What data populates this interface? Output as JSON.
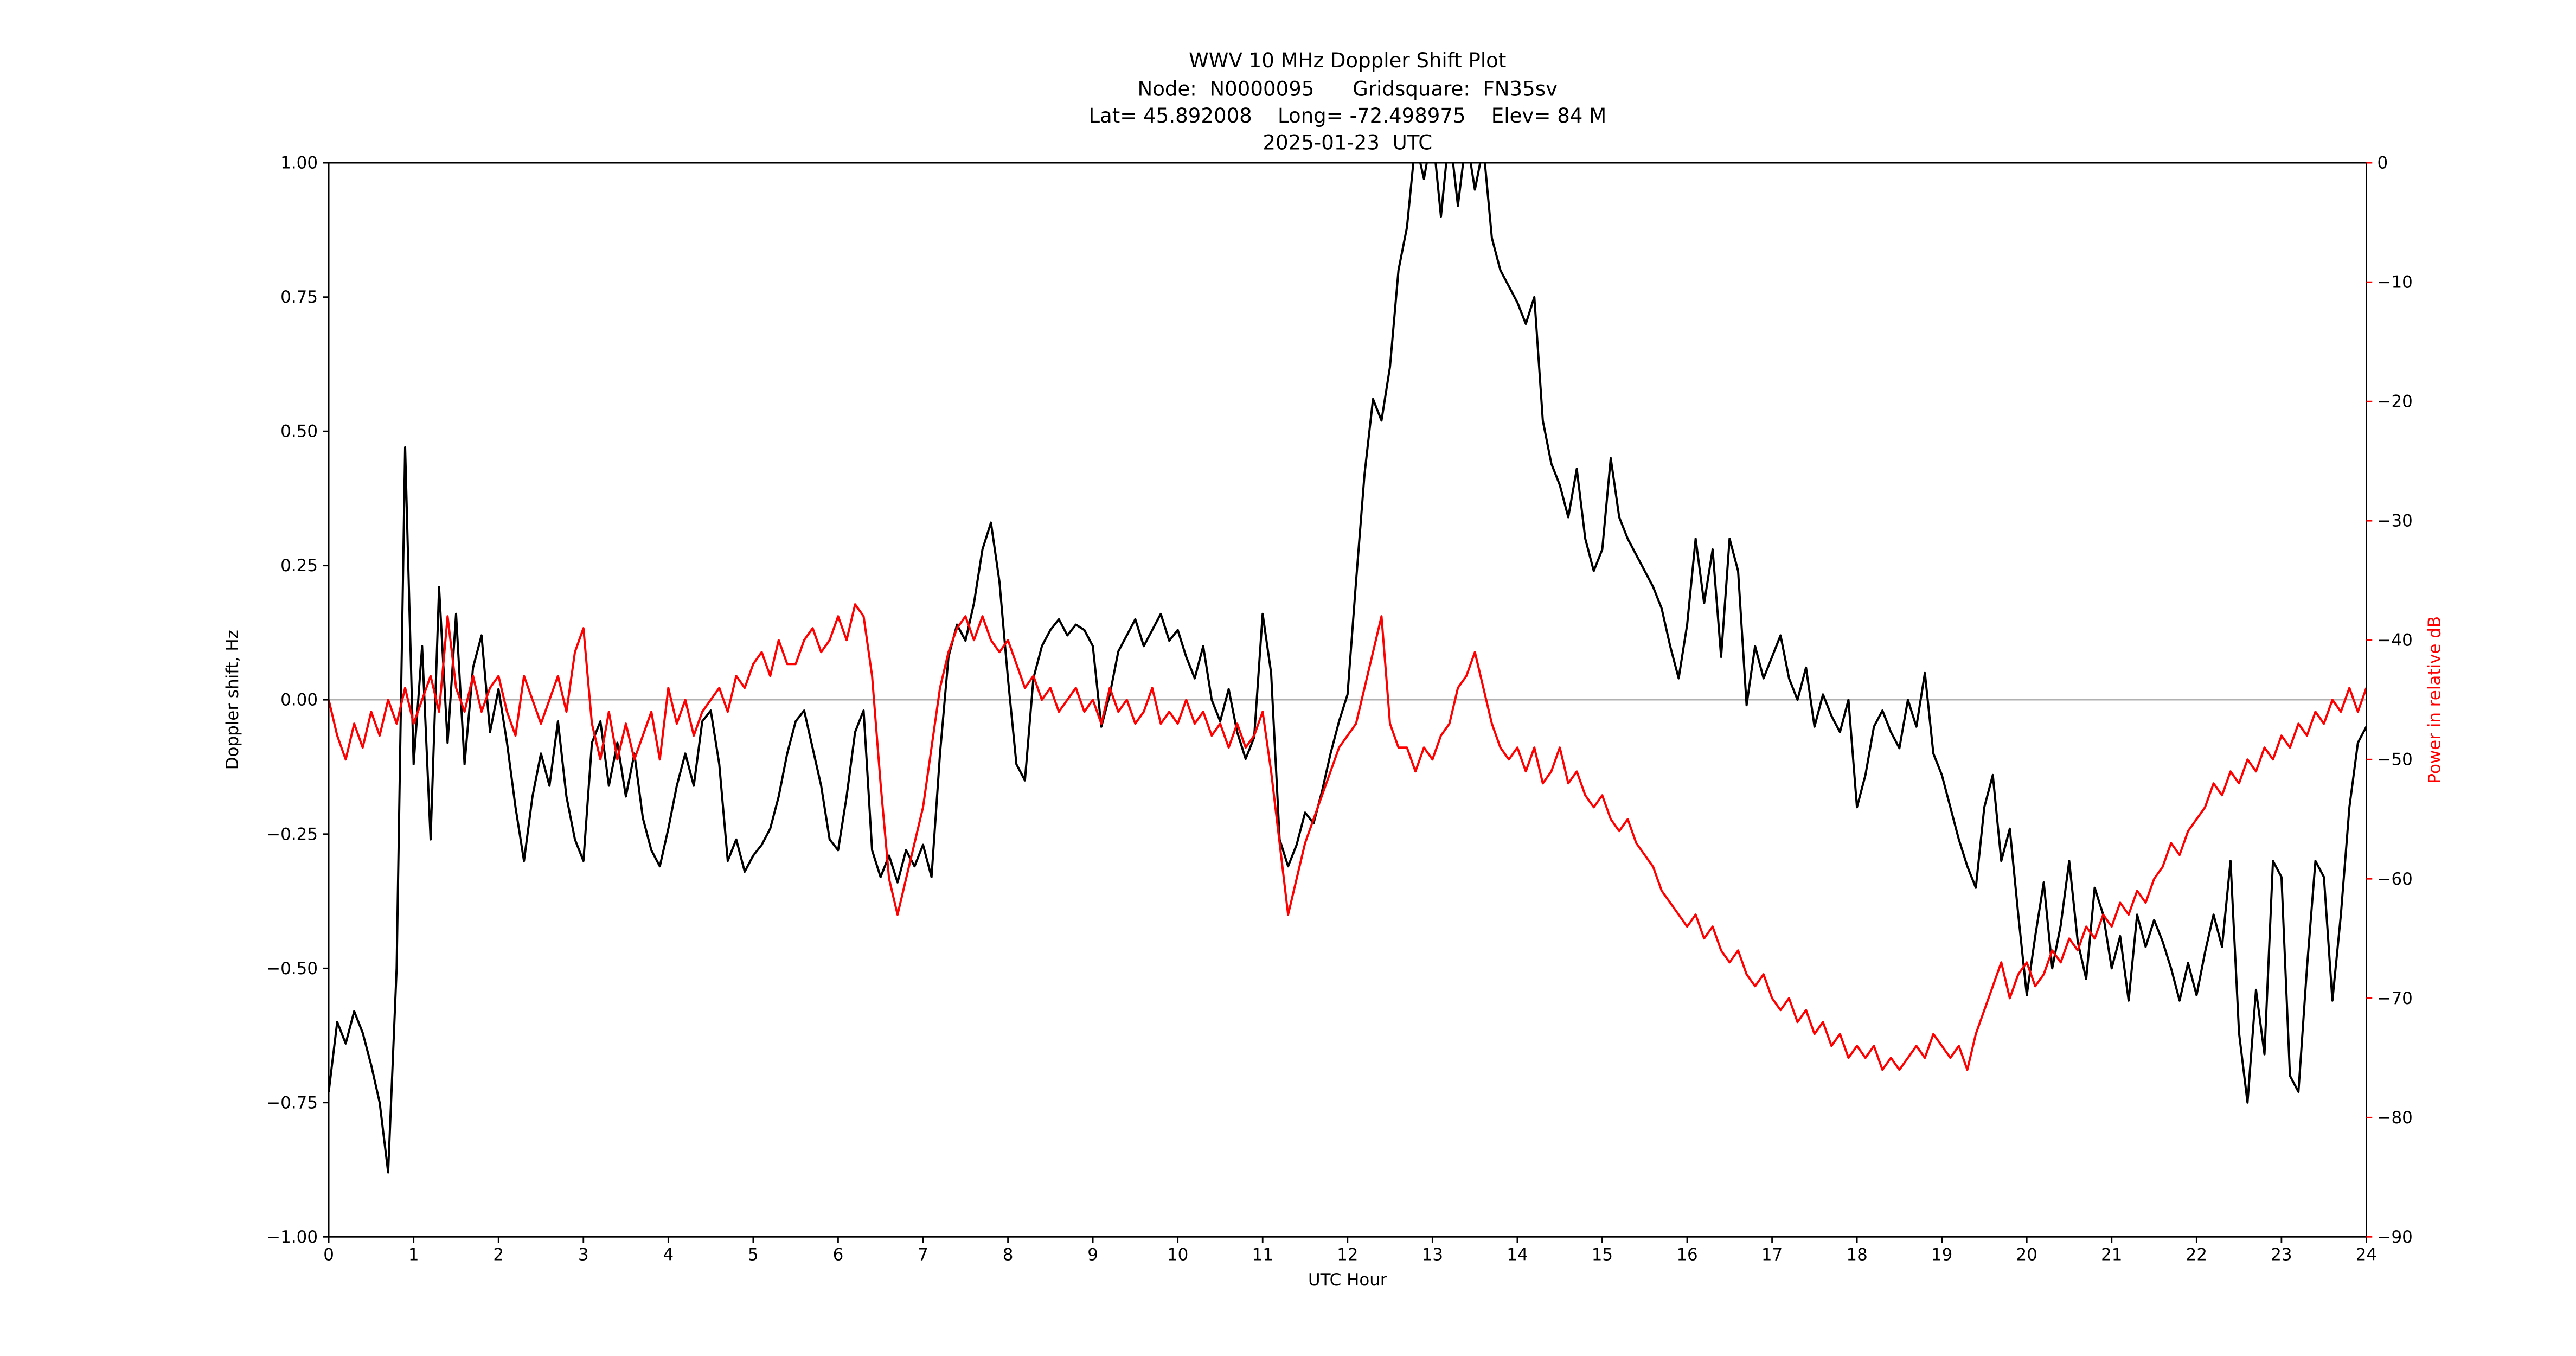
{
  "title": {
    "line1": "WWV 10 MHz Doppler Shift Plot",
    "line2": "Node:  N0000095      Gridsquare:  FN35sv",
    "line3": "Lat= 45.892008    Long= -72.498975    Elev= 84 M",
    "line4": "2025-01-23  UTC"
  },
  "axes": {
    "x": {
      "label": "UTC Hour",
      "ticks": [
        0,
        1,
        2,
        3,
        4,
        5,
        6,
        7,
        8,
        9,
        10,
        11,
        12,
        13,
        14,
        15,
        16,
        17,
        18,
        19,
        20,
        21,
        22,
        23,
        24
      ],
      "tick_labels": [
        "0",
        "1",
        "2",
        "3",
        "4",
        "5",
        "6",
        "7",
        "8",
        "9",
        "10",
        "11",
        "12",
        "13",
        "14",
        "15",
        "16",
        "17",
        "18",
        "19",
        "20",
        "21",
        "22",
        "23",
        "24"
      ]
    },
    "y_left": {
      "label": "Doppler shift, Hz",
      "ticks": [
        1.0,
        0.75,
        0.5,
        0.25,
        0.0,
        -0.25,
        -0.5,
        -0.75,
        -1.0
      ],
      "tick_labels": [
        "1.00",
        "0.75",
        "0.50",
        "0.25",
        "0.00",
        "−0.25",
        "−0.50",
        "−0.75",
        "−1.00"
      ],
      "color": "#000000"
    },
    "y_right": {
      "label": "Power in relative dB",
      "ticks": [
        0,
        -10,
        -20,
        -30,
        -40,
        -50,
        -60,
        -70,
        -80,
        -90
      ],
      "tick_labels": [
        "0",
        "−10",
        "−20",
        "−30",
        "−40",
        "−50",
        "−60",
        "−70",
        "−80",
        "−90"
      ],
      "color": "#ff0000"
    }
  },
  "chart_data": {
    "type": "line",
    "title": "WWV 10 MHz Doppler Shift Plot",
    "xlabel": "UTC Hour",
    "x_start": 0,
    "x_step": 0.1,
    "x_range": [
      0,
      24
    ],
    "y_left_range": [
      -1.0,
      1.0
    ],
    "y_right_range": [
      -90,
      0
    ],
    "zero_reference_line": 0.0,
    "zero_line_color": "#b0b0b0",
    "grid": false,
    "legend": "none",
    "series": [
      {
        "name": "Doppler shift, Hz",
        "axis": "left",
        "color": "#000000",
        "values": [
          -0.73,
          -0.6,
          -0.64,
          -0.58,
          -0.62,
          -0.68,
          -0.75,
          -0.88,
          -0.5,
          0.47,
          -0.12,
          0.1,
          -0.26,
          0.21,
          -0.08,
          0.16,
          -0.12,
          0.06,
          0.12,
          -0.06,
          0.02,
          -0.08,
          -0.2,
          -0.3,
          -0.18,
          -0.1,
          -0.16,
          -0.04,
          -0.18,
          -0.26,
          -0.3,
          -0.08,
          -0.04,
          -0.16,
          -0.08,
          -0.18,
          -0.1,
          -0.22,
          -0.28,
          -0.31,
          -0.24,
          -0.16,
          -0.1,
          -0.16,
          -0.04,
          -0.02,
          -0.12,
          -0.3,
          -0.26,
          -0.32,
          -0.29,
          -0.27,
          -0.24,
          -0.18,
          -0.1,
          -0.04,
          -0.02,
          -0.09,
          -0.16,
          -0.26,
          -0.28,
          -0.18,
          -0.06,
          -0.02,
          -0.28,
          -0.33,
          -0.29,
          -0.34,
          -0.28,
          -0.31,
          -0.27,
          -0.33,
          -0.1,
          0.08,
          0.14,
          0.11,
          0.18,
          0.28,
          0.33,
          0.22,
          0.04,
          -0.12,
          -0.15,
          0.04,
          0.1,
          0.13,
          0.15,
          0.12,
          0.14,
          0.13,
          0.1,
          -0.05,
          0.01,
          0.09,
          0.12,
          0.15,
          0.1,
          0.13,
          0.16,
          0.11,
          0.13,
          0.08,
          0.04,
          0.1,
          0.0,
          -0.04,
          0.02,
          -0.06,
          -0.11,
          -0.07,
          0.16,
          0.05,
          -0.26,
          -0.31,
          -0.27,
          -0.21,
          -0.23,
          -0.17,
          -0.1,
          -0.04,
          0.01,
          0.22,
          0.42,
          0.56,
          0.52,
          0.62,
          0.8,
          0.88,
          1.04,
          0.97,
          1.06,
          0.9,
          1.06,
          0.92,
          1.05,
          0.95,
          1.03,
          0.86,
          0.8,
          0.77,
          0.74,
          0.7,
          0.75,
          0.52,
          0.44,
          0.4,
          0.34,
          0.43,
          0.3,
          0.24,
          0.28,
          0.45,
          0.34,
          0.3,
          0.27,
          0.24,
          0.21,
          0.17,
          0.1,
          0.04,
          0.14,
          0.3,
          0.18,
          0.28,
          0.08,
          0.3,
          0.24,
          -0.01,
          0.1,
          0.04,
          0.08,
          0.12,
          0.04,
          0.0,
          0.06,
          -0.05,
          0.01,
          -0.03,
          -0.06,
          0.0,
          -0.2,
          -0.14,
          -0.05,
          -0.02,
          -0.06,
          -0.09,
          0.0,
          -0.05,
          0.05,
          -0.1,
          -0.14,
          -0.2,
          -0.26,
          -0.31,
          -0.35,
          -0.2,
          -0.14,
          -0.3,
          -0.24,
          -0.4,
          -0.55,
          -0.44,
          -0.34,
          -0.5,
          -0.42,
          -0.3,
          -0.45,
          -0.52,
          -0.35,
          -0.4,
          -0.5,
          -0.44,
          -0.56,
          -0.4,
          -0.46,
          -0.41,
          -0.45,
          -0.5,
          -0.56,
          -0.49,
          -0.55,
          -0.47,
          -0.4,
          -0.46,
          -0.3,
          -0.62,
          -0.75,
          -0.54,
          -0.66,
          -0.3,
          -0.33,
          -0.7,
          -0.73,
          -0.5,
          -0.3,
          -0.33,
          -0.56,
          -0.4,
          -0.2,
          -0.08,
          -0.05
        ]
      },
      {
        "name": "Power in relative dB",
        "axis": "right",
        "color": "#ff0000",
        "values": [
          -45,
          -48,
          -50,
          -47,
          -49,
          -46,
          -48,
          -45,
          -47,
          -44,
          -47,
          -45,
          -43,
          -46,
          -38,
          -44,
          -46,
          -43,
          -46,
          -44,
          -43,
          -46,
          -48,
          -43,
          -45,
          -47,
          -45,
          -43,
          -46,
          -41,
          -39,
          -47,
          -50,
          -46,
          -50,
          -47,
          -50,
          -48,
          -46,
          -50,
          -44,
          -47,
          -45,
          -48,
          -46,
          -45,
          -44,
          -46,
          -43,
          -44,
          -42,
          -41,
          -43,
          -40,
          -42,
          -42,
          -40,
          -39,
          -41,
          -40,
          -38,
          -40,
          -37,
          -38,
          -43,
          -52,
          -60,
          -63,
          -60,
          -57,
          -54,
          -49,
          -44,
          -41,
          -39,
          -38,
          -40,
          -38,
          -40,
          -41,
          -40,
          -42,
          -44,
          -43,
          -45,
          -44,
          -46,
          -45,
          -44,
          -46,
          -45,
          -47,
          -44,
          -46,
          -45,
          -47,
          -46,
          -44,
          -47,
          -46,
          -47,
          -45,
          -47,
          -46,
          -48,
          -47,
          -49,
          -47,
          -49,
          -48,
          -46,
          -51,
          -57,
          -63,
          -60,
          -57,
          -55,
          -53,
          -51,
          -49,
          -48,
          -47,
          -44,
          -41,
          -38,
          -47,
          -49,
          -49,
          -51,
          -49,
          -50,
          -48,
          -47,
          -44,
          -43,
          -41,
          -44,
          -47,
          -49,
          -50,
          -49,
          -51,
          -49,
          -52,
          -51,
          -49,
          -52,
          -51,
          -53,
          -54,
          -53,
          -55,
          -56,
          -55,
          -57,
          -58,
          -59,
          -61,
          -62,
          -63,
          -64,
          -63,
          -65,
          -64,
          -66,
          -67,
          -66,
          -68,
          -69,
          -68,
          -70,
          -71,
          -70,
          -72,
          -71,
          -73,
          -72,
          -74,
          -73,
          -75,
          -74,
          -75,
          -74,
          -76,
          -75,
          -76,
          -75,
          -74,
          -75,
          -73,
          -74,
          -75,
          -74,
          -76,
          -73,
          -71,
          -69,
          -67,
          -70,
          -68,
          -67,
          -69,
          -68,
          -66,
          -67,
          -65,
          -66,
          -64,
          -65,
          -63,
          -64,
          -62,
          -63,
          -61,
          -62,
          -60,
          -59,
          -57,
          -58,
          -56,
          -55,
          -54,
          -52,
          -53,
          -51,
          -52,
          -50,
          -51,
          -49,
          -50,
          -48,
          -49,
          -47,
          -48,
          -46,
          -47,
          -45,
          -46,
          -44,
          -46,
          -44
        ]
      }
    ]
  }
}
